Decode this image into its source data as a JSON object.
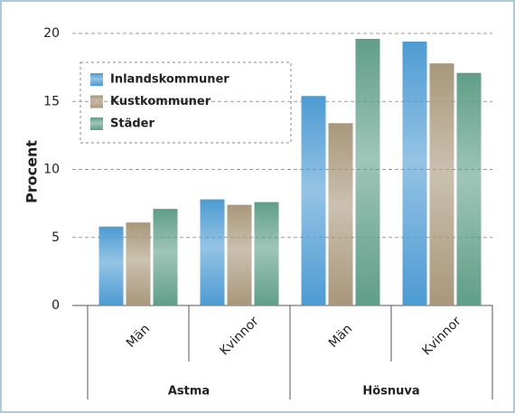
{
  "chart_data": {
    "type": "bar",
    "y_label": "Procent",
    "groups": [
      {
        "name": "Astma",
        "categories": [
          "Män",
          "Kvinnor"
        ]
      },
      {
        "name": "Hösnuva",
        "categories": [
          "Män",
          "Kvinnor"
        ]
      }
    ],
    "series": [
      {
        "name": "Inlandskommuner",
        "color": "#4d9bd3",
        "values": [
          5.8,
          7.8,
          15.4,
          19.4
        ]
      },
      {
        "name": "Kustkommuner",
        "color": "#a8977a",
        "values": [
          6.1,
          7.4,
          13.4,
          17.8
        ]
      },
      {
        "name": "Städer",
        "color": "#5f9e88",
        "values": [
          7.1,
          7.6,
          19.6,
          17.1
        ]
      }
    ],
    "ylim": [
      0,
      20
    ],
    "yticks": [
      0,
      5,
      10,
      15,
      20
    ],
    "grid": true,
    "legend": "upper left"
  }
}
